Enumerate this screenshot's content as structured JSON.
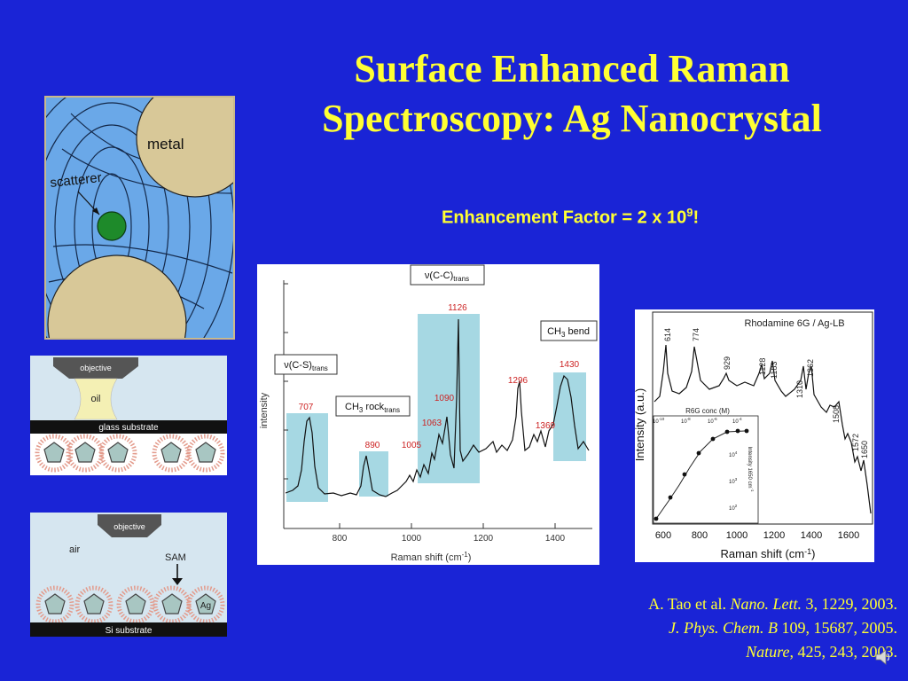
{
  "slide": {
    "title_line1": "Surface Enhanced Raman",
    "title_line2": "Spectroscopy: Ag Nanocrystal",
    "enhancement_prefix": "Enhancement Factor  = 2 x 10",
    "enhancement_exp": "9",
    "enhancement_suffix": "!"
  },
  "colors": {
    "background": "#1a24d6",
    "title": "#ffff33",
    "peak_label": "#cc2222",
    "highlight": "#a6d8e3"
  },
  "scatter_diagram": {
    "metal_label": "metal",
    "scatterer_label": "scatterer"
  },
  "setup_top": {
    "objective": "objective",
    "oil": "oil",
    "substrate": "glass substrate"
  },
  "setup_bottom": {
    "objective": "objective",
    "air": "air",
    "sam": "SAM",
    "ag": "Ag",
    "substrate": "Si substrate"
  },
  "spectrum1": {
    "ylabel": "intensity",
    "xlabel": "Raman shift (cm",
    "xlabel_sup": "-1",
    "xlabel_end": ")",
    "xticks": [
      "800",
      "1000",
      "1200",
      "1400"
    ],
    "boxes": {
      "cc": "ν(C-C)",
      "cc_sub": "trans",
      "cs": "ν(C-S)",
      "cs_sub": "trans",
      "ch3rock": "CH",
      "ch3rock_sub3": "3",
      "ch3rock_rest": " rock",
      "ch3rock_sub": "trans",
      "ch3bend": "CH",
      "ch3bend_sub3": "3",
      "ch3bend_rest": " bend"
    },
    "peaks": [
      "707",
      "890",
      "1005",
      "1063",
      "1090",
      "1126",
      "1296",
      "1369",
      "1430"
    ]
  },
  "spectrum2": {
    "title": "Rhodamine 6G / Ag-LB",
    "ylabel": "Intensity (a.u.)",
    "xlabel": "Raman shift (cm",
    "xlabel_sup": "-1",
    "xlabel_end": ")",
    "xticks": [
      "600",
      "800",
      "1000",
      "1200",
      "1400",
      "1600"
    ],
    "peaks": [
      "614",
      "774",
      "929",
      "1128",
      "1183",
      "1310",
      "1362",
      "1508",
      "1572",
      "1650"
    ],
    "inset": {
      "title": "R6G conc (M)",
      "top_ticks": [
        "10",
        "10",
        "10",
        "10"
      ],
      "top_exps": [
        "-10",
        "-8",
        "-6",
        "-4"
      ],
      "ylabel": "Intensity 1650 cm",
      "ylabel_sup": "-1",
      "right_ticks": [
        "10",
        "10",
        "10"
      ],
      "right_exps": [
        "4",
        "3",
        "2"
      ]
    }
  },
  "references": {
    "line1_plain": "A. Tao et al. ",
    "line1_journal": "Nano. Lett.",
    "line1_rest": "  3, 1229, 2003.",
    "line2_journal": "J. Phys. Chem. B",
    "line2_rest": " 109, 15687, 2005.",
    "line3_journal": "Nature",
    "line3_rest": ", 425, 243, 2003."
  }
}
